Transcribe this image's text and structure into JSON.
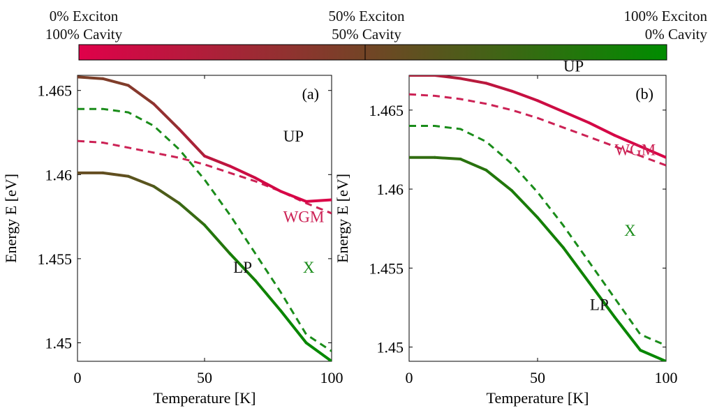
{
  "colorbar": {
    "left_label": {
      "line1": "0% Exciton",
      "line2": "100% Cavity"
    },
    "mid_label": {
      "line1": "50% Exciton",
      "line2": "50% Cavity"
    },
    "right_label": {
      "line1": "100% Exciton",
      "line2": "0% Cavity"
    },
    "color_cavity": "#e0004a",
    "color_exciton": "#008c00"
  },
  "chart_data": [
    {
      "type": "line",
      "panel_label": "(a)",
      "xlabel": "Temperature [K]",
      "ylabel": "Energy E [eV]",
      "xlim": [
        0,
        100
      ],
      "ylim": [
        1.4489,
        1.4659
      ],
      "xticks": [
        0,
        50,
        100
      ],
      "yticks": [
        1.45,
        1.455,
        1.46,
        1.465
      ],
      "ytick_labels": [
        "1.45",
        "1.455",
        "1.46",
        "1.465"
      ],
      "x": [
        0,
        10,
        20,
        30,
        40,
        50,
        60,
        70,
        80,
        90,
        100
      ],
      "series": [
        {
          "name": "UP",
          "style": "solid",
          "values": [
            1.4658,
            1.4657,
            1.4653,
            1.4642,
            1.4627,
            1.4611,
            1.4605,
            1.4598,
            1.459,
            1.4584,
            1.4585
          ],
          "exciton_fraction": [
            0.45,
            0.45,
            0.42,
            0.38,
            0.3,
            0.2,
            0.12,
            0.08,
            0.05,
            0.03,
            0.02
          ]
        },
        {
          "name": "LP",
          "style": "solid",
          "values": [
            1.4601,
            1.4601,
            1.4599,
            1.4593,
            1.4583,
            1.457,
            1.4553,
            1.4537,
            1.4519,
            1.45,
            1.4489
          ],
          "exciton_fraction": [
            0.55,
            0.55,
            0.58,
            0.62,
            0.7,
            0.8,
            0.88,
            0.92,
            0.95,
            0.97,
            0.98
          ]
        },
        {
          "name": "X",
          "style": "dashed",
          "values": [
            1.4639,
            1.4639,
            1.4637,
            1.4629,
            1.4615,
            1.4597,
            1.4576,
            1.4553,
            1.453,
            1.4505,
            1.4495
          ],
          "color": "#1a8c1a"
        },
        {
          "name": "WGM",
          "style": "dashed",
          "values": [
            1.462,
            1.4619,
            1.4616,
            1.4613,
            1.461,
            1.4606,
            1.4601,
            1.4596,
            1.459,
            1.4583,
            1.4577
          ],
          "color": "#cc2255"
        }
      ],
      "annotations": [
        {
          "text": "UP",
          "x": 85,
          "y": 1.4623
        },
        {
          "text": "WGM",
          "x": 89,
          "y": 1.4575,
          "color": "#cc2255"
        },
        {
          "text": "LP",
          "x": 65,
          "y": 1.4545
        },
        {
          "text": "X",
          "x": 91,
          "y": 1.4545,
          "color": "#1a8c1a"
        }
      ]
    },
    {
      "type": "line",
      "panel_label": "(b)",
      "xlabel": "Temperature [K]",
      "ylabel": "Energy E [eV]",
      "xlim": [
        0,
        100
      ],
      "ylim": [
        1.4491,
        1.4672
      ],
      "xticks": [
        0,
        50,
        100
      ],
      "yticks": [
        1.45,
        1.455,
        1.46,
        1.465
      ],
      "ytick_labels": [
        "1.45",
        "1.455",
        "1.46",
        "1.465"
      ],
      "x": [
        0,
        10,
        20,
        30,
        40,
        50,
        60,
        70,
        80,
        90,
        100
      ],
      "series": [
        {
          "name": "UP",
          "style": "solid",
          "values": [
            1.4672,
            1.4672,
            1.467,
            1.4667,
            1.4662,
            1.4656,
            1.4649,
            1.4642,
            1.4634,
            1.4627,
            1.462
          ],
          "exciton_fraction": [
            0.22,
            0.22,
            0.2,
            0.17,
            0.13,
            0.1,
            0.08,
            0.06,
            0.05,
            0.04,
            0.03
          ]
        },
        {
          "name": "LP",
          "style": "solid",
          "values": [
            1.462,
            1.462,
            1.4619,
            1.4612,
            1.4599,
            1.4582,
            1.4563,
            1.4541,
            1.4519,
            1.4498,
            1.4491
          ],
          "exciton_fraction": [
            0.78,
            0.78,
            0.8,
            0.83,
            0.87,
            0.9,
            0.92,
            0.94,
            0.95,
            0.96,
            0.97
          ]
        },
        {
          "name": "X",
          "style": "dashed",
          "values": [
            1.464,
            1.464,
            1.4638,
            1.463,
            1.4616,
            1.4598,
            1.4577,
            1.4554,
            1.4531,
            1.4508,
            1.4501
          ],
          "color": "#1a8c1a"
        },
        {
          "name": "WGM",
          "style": "dashed",
          "values": [
            1.466,
            1.4659,
            1.4657,
            1.4654,
            1.465,
            1.4645,
            1.4639,
            1.4633,
            1.4627,
            1.4621,
            1.4615
          ],
          "color": "#cc2255"
        }
      ],
      "annotations": [
        {
          "text": "UP",
          "x": 64,
          "y": 1.4678
        },
        {
          "text": "WGM",
          "x": 88,
          "y": 1.4625,
          "color": "#cc2255"
        },
        {
          "text": "X",
          "x": 86,
          "y": 1.4574,
          "color": "#1a8c1a"
        },
        {
          "text": "LP",
          "x": 74,
          "y": 1.4527
        }
      ]
    }
  ]
}
